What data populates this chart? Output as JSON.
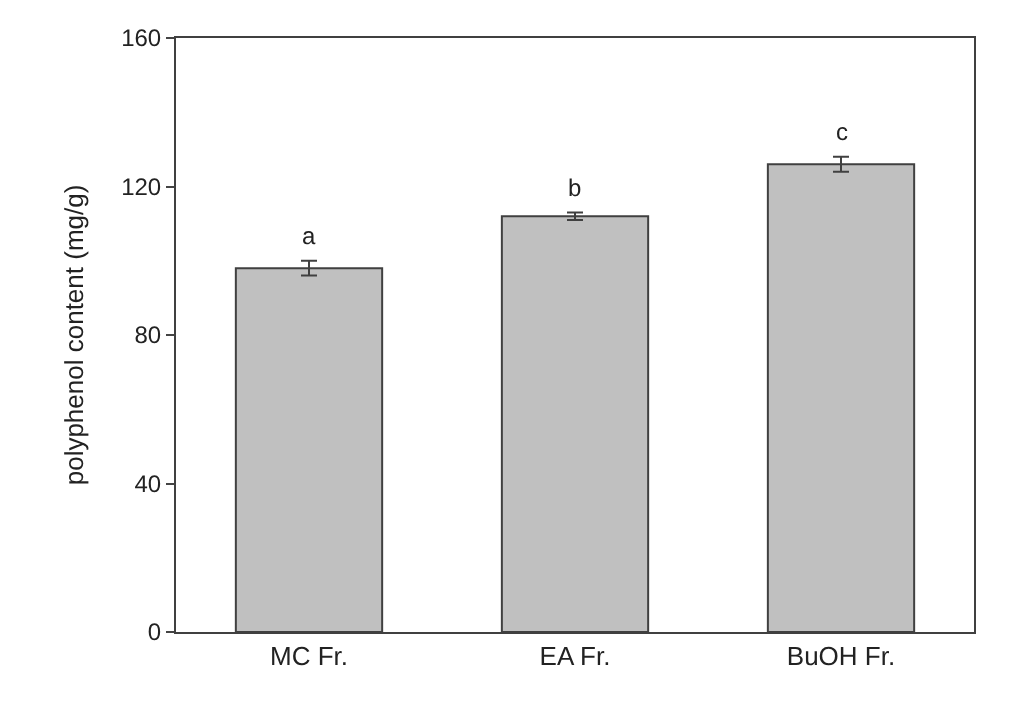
{
  "chart_data": {
    "type": "bar",
    "ylabel": "polyphenol content (mg/g)",
    "categories": [
      "MC Fr.",
      "EA Fr.",
      "BuOH Fr."
    ],
    "values": [
      98,
      112,
      126
    ],
    "errors": [
      2,
      1,
      2
    ],
    "color": "#c0c0c0",
    "ylim": [
      0,
      160
    ],
    "yticks": [
      0,
      40,
      80,
      120,
      160
    ],
    "legend": false,
    "annotations": [
      {
        "text": "a",
        "x": "MC Fr.",
        "y": 100
      },
      {
        "text": "b",
        "x": "EA Fr.",
        "y": 113
      },
      {
        "text": "c",
        "x": "BuOH Fr.",
        "y": 128
      }
    ]
  }
}
